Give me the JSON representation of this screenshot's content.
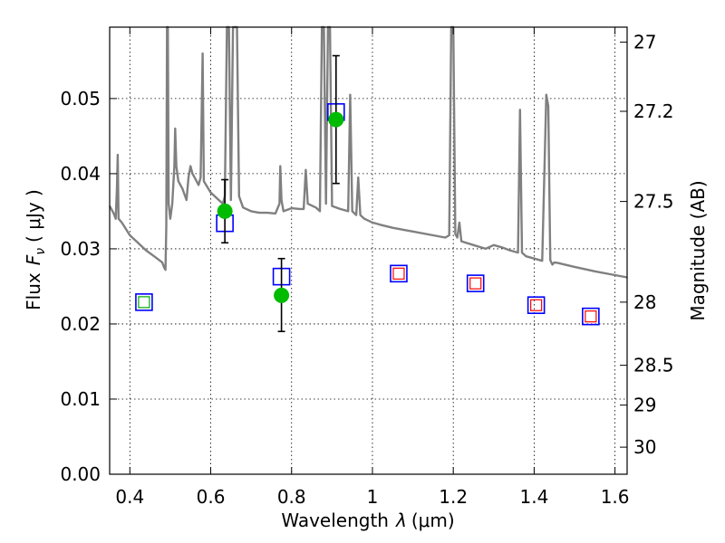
{
  "chart_data": {
    "type": "scatter",
    "xlabel_prefix": "Wavelength",
    "xlabel_symbol": "λ",
    "xlabel_unit": "(μm)",
    "ylabel_prefix": "Flux",
    "ylabel_symbol": "F",
    "ylabel_subscript": "ν",
    "ylabel_unit": "( μJy )",
    "y2label": "Magnitude (AB)",
    "xlim": [
      0.35,
      1.63
    ],
    "ylim": [
      0.0,
      0.0595
    ],
    "grid": true,
    "x_ticks": [
      0.4,
      0.6,
      0.8,
      1.0,
      1.2,
      1.4,
      1.6
    ],
    "x_tick_labels": [
      "0.4",
      "0.6",
      "0.8",
      "1",
      "1.2",
      "1.4",
      "1.6"
    ],
    "y_ticks": [
      0.0,
      0.01,
      0.02,
      0.03,
      0.04,
      0.05
    ],
    "y_tick_labels": [
      "0.00",
      "0.01",
      "0.02",
      "0.03",
      "0.04",
      "0.05"
    ],
    "y2_ticks": [
      {
        "label": "27",
        "flux": 0.0575
      },
      {
        "label": "27.2",
        "flux": 0.0483
      },
      {
        "label": "27.5",
        "flux": 0.0363
      },
      {
        "label": "28",
        "flux": 0.0229
      },
      {
        "label": "28.5",
        "flux": 0.0145
      },
      {
        "label": "29",
        "flux": 0.0092
      },
      {
        "label": "30",
        "flux": 0.0036
      }
    ],
    "colors": {
      "spectrum": "#808080",
      "blue_square": "#0000ff",
      "red_square": "#ff0000",
      "green_square": "#00aa00",
      "green_dot": "#00bb00",
      "errorbar": "#000000"
    },
    "series": [
      {
        "name": "",
        "kind": "model-spectrum",
        "points": [
          [
            0.35,
            0.0357
          ],
          [
            0.36,
            0.0347
          ],
          [
            0.365,
            0.034
          ],
          [
            0.368,
            0.038
          ],
          [
            0.37,
            0.0425
          ],
          [
            0.372,
            0.034
          ],
          [
            0.38,
            0.0335
          ],
          [
            0.4,
            0.0318
          ],
          [
            0.42,
            0.0308
          ],
          [
            0.44,
            0.0298
          ],
          [
            0.46,
            0.029
          ],
          [
            0.48,
            0.0282
          ],
          [
            0.485,
            0.0275
          ],
          [
            0.488,
            0.0272
          ],
          [
            0.49,
            0.033
          ],
          [
            0.492,
            0.0595
          ],
          [
            0.494,
            0.0595
          ],
          [
            0.496,
            0.036
          ],
          [
            0.5,
            0.034
          ],
          [
            0.505,
            0.036
          ],
          [
            0.51,
            0.041
          ],
          [
            0.512,
            0.046
          ],
          [
            0.515,
            0.041
          ],
          [
            0.52,
            0.039
          ],
          [
            0.53,
            0.038
          ],
          [
            0.54,
            0.0365
          ],
          [
            0.545,
            0.0395
          ],
          [
            0.55,
            0.041
          ],
          [
            0.555,
            0.04
          ],
          [
            0.56,
            0.0395
          ],
          [
            0.57,
            0.0385
          ],
          [
            0.575,
            0.0395
          ],
          [
            0.58,
            0.056
          ],
          [
            0.583,
            0.039
          ],
          [
            0.6,
            0.0375
          ],
          [
            0.62,
            0.0365
          ],
          [
            0.63,
            0.036
          ],
          [
            0.635,
            0.037
          ],
          [
            0.64,
            0.0595
          ],
          [
            0.645,
            0.0595
          ],
          [
            0.65,
            0.0365
          ],
          [
            0.655,
            0.0595
          ],
          [
            0.66,
            0.0595
          ],
          [
            0.665,
            0.0595
          ],
          [
            0.67,
            0.037
          ],
          [
            0.68,
            0.0355
          ],
          [
            0.7,
            0.035
          ],
          [
            0.72,
            0.0348
          ],
          [
            0.74,
            0.0348
          ],
          [
            0.76,
            0.0347
          ],
          [
            0.77,
            0.036
          ],
          [
            0.772,
            0.041
          ],
          [
            0.775,
            0.0365
          ],
          [
            0.78,
            0.035
          ],
          [
            0.8,
            0.0354
          ],
          [
            0.82,
            0.0353
          ],
          [
            0.83,
            0.0353
          ],
          [
            0.835,
            0.0405
          ],
          [
            0.84,
            0.036
          ],
          [
            0.86,
            0.0355
          ],
          [
            0.87,
            0.035
          ],
          [
            0.875,
            0.0595
          ],
          [
            0.88,
            0.0595
          ],
          [
            0.885,
            0.036
          ],
          [
            0.89,
            0.0595
          ],
          [
            0.895,
            0.0595
          ],
          [
            0.9,
            0.0357
          ],
          [
            0.92,
            0.0353
          ],
          [
            0.94,
            0.035
          ],
          [
            0.945,
            0.0505
          ],
          [
            0.95,
            0.035
          ],
          [
            0.96,
            0.0345
          ],
          [
            0.965,
            0.0395
          ],
          [
            0.97,
            0.0345
          ],
          [
            0.98,
            0.034
          ],
          [
            1.0,
            0.0335
          ],
          [
            1.02,
            0.0332
          ],
          [
            1.05,
            0.0328
          ],
          [
            1.08,
            0.0325
          ],
          [
            1.1,
            0.0323
          ],
          [
            1.15,
            0.0318
          ],
          [
            1.18,
            0.0315
          ],
          [
            1.19,
            0.0318
          ],
          [
            1.195,
            0.0595
          ],
          [
            1.2,
            0.0595
          ],
          [
            1.205,
            0.032
          ],
          [
            1.21,
            0.0315
          ],
          [
            1.215,
            0.0335
          ],
          [
            1.22,
            0.031
          ],
          [
            1.25,
            0.0305
          ],
          [
            1.28,
            0.03
          ],
          [
            1.3,
            0.0305
          ],
          [
            1.32,
            0.0302
          ],
          [
            1.34,
            0.0298
          ],
          [
            1.36,
            0.0295
          ],
          [
            1.365,
            0.0485
          ],
          [
            1.37,
            0.0295
          ],
          [
            1.38,
            0.029
          ],
          [
            1.4,
            0.0287
          ],
          [
            1.42,
            0.0284
          ],
          [
            1.43,
            0.0505
          ],
          [
            1.435,
            0.049
          ],
          [
            1.44,
            0.0285
          ],
          [
            1.445,
            0.0279
          ],
          [
            1.45,
            0.0282
          ],
          [
            1.46,
            0.0281
          ],
          [
            1.5,
            0.0276
          ],
          [
            1.55,
            0.027
          ],
          [
            1.6,
            0.0265
          ],
          [
            1.63,
            0.0262
          ]
        ]
      },
      {
        "name": "",
        "kind": "blue-squares",
        "points": [
          [
            0.435,
            0.0229
          ],
          [
            0.635,
            0.0334
          ],
          [
            0.775,
            0.0263
          ],
          [
            0.91,
            0.0482
          ],
          [
            1.065,
            0.0267
          ],
          [
            1.255,
            0.0254
          ],
          [
            1.405,
            0.0225
          ],
          [
            1.54,
            0.021
          ]
        ]
      },
      {
        "name": "",
        "kind": "red-squares",
        "points": [
          [
            1.065,
            0.0267
          ],
          [
            1.255,
            0.0254
          ],
          [
            1.405,
            0.0225
          ],
          [
            1.54,
            0.021
          ]
        ]
      },
      {
        "name": "",
        "kind": "green-squares",
        "points": [
          [
            0.435,
            0.0229
          ]
        ]
      },
      {
        "name": "",
        "kind": "green-dots-errorbars",
        "points": [
          {
            "x": 0.635,
            "y": 0.035,
            "ylow": 0.0308,
            "yhigh": 0.0392
          },
          {
            "x": 0.775,
            "y": 0.0238,
            "ylow": 0.019,
            "yhigh": 0.0287
          },
          {
            "x": 0.91,
            "y": 0.0472,
            "ylow": 0.0387,
            "yhigh": 0.0557
          }
        ]
      }
    ]
  }
}
